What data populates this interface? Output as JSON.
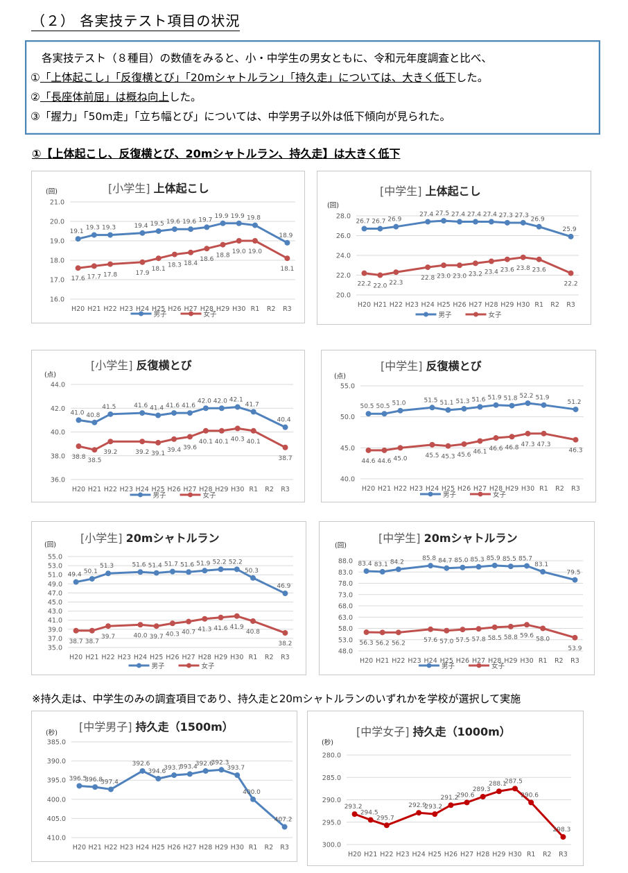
{
  "heading": "（２） 各実技テスト項目の状況",
  "summary": {
    "line1": "各実技テスト（８種目）の数値をみると、小・中学生の男女ともに、令和元年度調査と比べ、",
    "line2_marker": "①",
    "line2_items": "「上体起こし」「反復横とび」「20mシャトルラン」「持久走」",
    "line2_text": "については、大きく低下",
    "line2_end": "した。",
    "line3_marker": "②",
    "line3_item": "「長座体前屈」",
    "line3_text": "は概ね向上",
    "line3_end": "した。",
    "line4": "③「握力」「50m走」「立ち幅とび」については、中学男子以外は低下傾向が見られた。"
  },
  "subheading": "①【上体起こし、反復横とび、20mシャトルラン、持久走】は大きく低下",
  "note": "※持久走は、中学生のみの調査項目であり、持久走と20mシャトルランのいずれかを学校が選択して実施",
  "colors": {
    "boys": "#4f81bd",
    "girls": "#c0504d",
    "boys_only": "#c00000",
    "grid": "#d9d9d9",
    "text": "#595959"
  },
  "categories": [
    "H20",
    "H21",
    "H22",
    "H23",
    "H24",
    "H25",
    "H26",
    "H27",
    "H28",
    "H29",
    "H30",
    "R1",
    "R2",
    "R3"
  ],
  "legend": {
    "boys": "男子",
    "girls": "女子"
  },
  "chart_data": [
    {
      "id": "c1",
      "type": "line",
      "group": "[小学生]",
      "title": "上体起こし",
      "unit": "(回)",
      "ylim": [
        16,
        21
      ],
      "step": 1,
      "decimals": 1,
      "reversed": false,
      "series": [
        {
          "name": "男子",
          "values": [
            19.1,
            19.3,
            19.3,
            null,
            19.4,
            19.5,
            19.6,
            19.6,
            19.7,
            19.9,
            19.9,
            19.8,
            null,
            18.9
          ]
        },
        {
          "name": "女子",
          "values": [
            17.6,
            17.7,
            17.8,
            null,
            17.9,
            18.1,
            18.3,
            18.4,
            18.6,
            18.8,
            19.0,
            19.0,
            null,
            18.1
          ]
        }
      ]
    },
    {
      "id": "c2",
      "type": "line",
      "group": "[中学生]",
      "title": "上体起こし",
      "unit": "(回)",
      "ylim": [
        20,
        28
      ],
      "step": 2,
      "decimals": 1,
      "reversed": false,
      "series": [
        {
          "name": "男子",
          "values": [
            26.7,
            26.7,
            26.9,
            null,
            27.4,
            27.5,
            27.4,
            27.4,
            27.4,
            27.3,
            27.3,
            26.9,
            null,
            25.9
          ]
        },
        {
          "name": "女子",
          "values": [
            22.2,
            22.0,
            22.3,
            null,
            22.8,
            23.0,
            23.0,
            23.2,
            23.4,
            23.6,
            23.8,
            23.6,
            null,
            22.2
          ]
        }
      ]
    },
    {
      "id": "c3",
      "type": "line",
      "group": "[小学生]",
      "title": "反復横とび",
      "unit": "(点)",
      "ylim": [
        36,
        44
      ],
      "step": 2,
      "decimals": 1,
      "reversed": false,
      "series": [
        {
          "name": "男子",
          "values": [
            41.0,
            40.8,
            41.5,
            null,
            41.6,
            41.4,
            41.6,
            41.6,
            42.0,
            42.0,
            42.1,
            41.7,
            null,
            40.4
          ]
        },
        {
          "name": "女子",
          "values": [
            38.8,
            38.5,
            39.2,
            null,
            39.2,
            39.1,
            39.4,
            39.6,
            40.1,
            40.1,
            40.3,
            40.1,
            null,
            38.7
          ]
        }
      ]
    },
    {
      "id": "c4",
      "type": "line",
      "group": "[中学生]",
      "title": "反復横とび",
      "unit": "(点)",
      "ylim": [
        40,
        55
      ],
      "step": 5,
      "decimals": 1,
      "reversed": false,
      "series": [
        {
          "name": "男子",
          "values": [
            50.5,
            50.5,
            51.0,
            null,
            51.5,
            51.1,
            51.3,
            51.6,
            51.9,
            51.8,
            52.2,
            51.9,
            null,
            51.2
          ]
        },
        {
          "name": "女子",
          "values": [
            44.6,
            44.6,
            45.0,
            null,
            45.5,
            45.3,
            45.6,
            46.1,
            46.6,
            46.8,
            47.3,
            47.3,
            null,
            46.3
          ]
        }
      ]
    },
    {
      "id": "c5",
      "type": "line",
      "group": "[小学生]",
      "title": "20mシャトルラン",
      "unit": "(回)",
      "ylim": [
        35,
        55
      ],
      "step": 2,
      "decimals": 1,
      "reversed": false,
      "series": [
        {
          "name": "男子",
          "values": [
            49.4,
            50.1,
            51.3,
            null,
            51.6,
            51.4,
            51.7,
            51.6,
            51.9,
            52.2,
            52.2,
            50.3,
            null,
            46.9
          ]
        },
        {
          "name": "女子",
          "values": [
            38.7,
            38.7,
            39.7,
            null,
            40.0,
            39.7,
            40.3,
            40.7,
            41.3,
            41.6,
            41.9,
            40.8,
            null,
            38.2
          ]
        }
      ]
    },
    {
      "id": "c6",
      "type": "line",
      "group": "[中学生]",
      "title": "20mシャトルラン",
      "unit": "(回)",
      "ylim": [
        48,
        88
      ],
      "step": 5,
      "decimals": 1,
      "reversed": false,
      "series": [
        {
          "name": "男子",
          "values": [
            83.4,
            83.1,
            84.2,
            null,
            85.8,
            84.7,
            85.0,
            85.3,
            85.9,
            85.5,
            85.7,
            83.1,
            null,
            79.5
          ]
        },
        {
          "name": "女子",
          "values": [
            56.3,
            56.2,
            56.2,
            null,
            57.6,
            57.0,
            57.5,
            57.8,
            58.5,
            58.8,
            59.6,
            58.0,
            null,
            53.9
          ]
        }
      ]
    },
    {
      "id": "c7",
      "type": "line",
      "group": "[中学男子]",
      "title": "持久走（1500m）",
      "unit": "(秒)",
      "ylim": [
        385,
        410
      ],
      "step": 5,
      "decimals": 1,
      "reversed": true,
      "series": [
        {
          "name": "男子",
          "values": [
            396.5,
            396.8,
            397.4,
            null,
            392.6,
            394.6,
            393.7,
            393.4,
            392.6,
            392.3,
            393.7,
            400.0,
            null,
            407.2
          ]
        }
      ]
    },
    {
      "id": "c8",
      "type": "line",
      "group": "[中学女子]",
      "title": "持久走（1000m）",
      "unit": "(秒)",
      "ylim": [
        280,
        300
      ],
      "step": 5,
      "decimals": 1,
      "reversed": true,
      "series": [
        {
          "name": "女子",
          "values": [
            293.2,
            294.5,
            295.7,
            null,
            292.9,
            293.2,
            291.2,
            290.6,
            289.3,
            288.1,
            287.5,
            290.6,
            null,
            298.3
          ]
        }
      ]
    }
  ]
}
